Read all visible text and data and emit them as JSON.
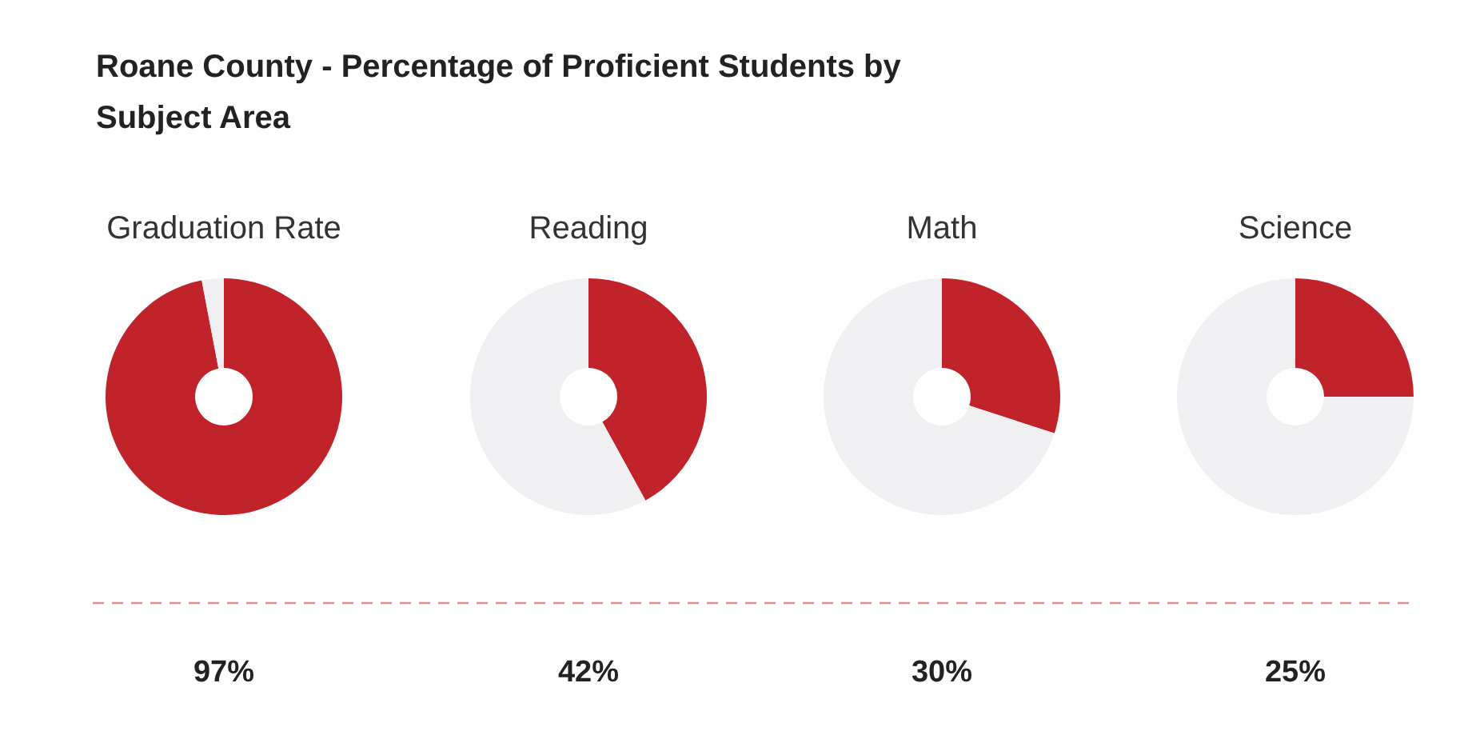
{
  "chart_data": [
    {
      "type": "other",
      "title": "Roane County - Percentage of Proficient Students by Subject Area"
    },
    {
      "type": "donut",
      "title": "Graduation Rate",
      "categories": [
        null,
        null
      ],
      "values": [
        97,
        3
      ],
      "colors": [
        "#c1232b",
        "#f0f0f2"
      ],
      "annotations": [
        "97%"
      ]
    },
    {
      "type": "donut",
      "title": "Reading",
      "categories": [
        null,
        null
      ],
      "values": [
        42,
        58
      ],
      "colors": [
        "#c1232b",
        "#f0f0f2"
      ],
      "annotations": [
        "42%"
      ]
    },
    {
      "type": "donut",
      "title": "Math",
      "categories": [
        null,
        null
      ],
      "values": [
        30,
        70
      ],
      "colors": [
        "#c1232b",
        "#f0f0f2"
      ],
      "annotations": [
        "30%"
      ]
    },
    {
      "type": "donut",
      "title": "Science",
      "categories": [
        null,
        null
      ],
      "values": [
        25,
        75
      ],
      "colors": [
        "#c1232b",
        "#f0f0f2"
      ],
      "annotations": [
        "25%"
      ]
    }
  ]
}
